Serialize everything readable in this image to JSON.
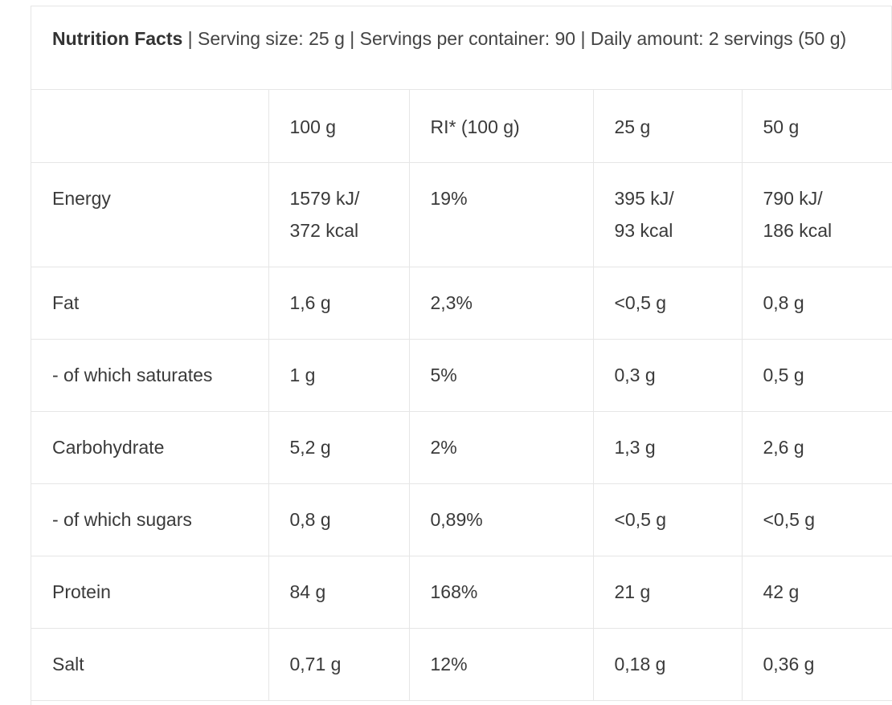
{
  "caption": {
    "title": "Nutrition Facts",
    "rest": " | Serving size: 25 g | Servings per container: 90 | Daily amount: 2 servings (50 g)"
  },
  "header": [
    "",
    "100 g",
    "RI* (100 g)",
    "25 g",
    "50 g"
  ],
  "rows": [
    {
      "label": "Energy",
      "c100": [
        "1579 kJ/",
        "372 kcal"
      ],
      "ri": "19%",
      "c25": [
        "395 kJ/",
        "93 kcal"
      ],
      "c50": [
        "790 kJ/",
        "186 kcal"
      ]
    },
    {
      "label": "Fat",
      "c100": [
        "1,6 g"
      ],
      "ri": "2,3%",
      "c25": [
        "<0,5 g"
      ],
      "c50": [
        "0,8 g"
      ]
    },
    {
      "label": "- of which saturates",
      "c100": [
        "1 g"
      ],
      "ri": "5%",
      "c25": [
        "0,3 g"
      ],
      "c50": [
        "0,5 g"
      ]
    },
    {
      "label": "Carbohydrate",
      "c100": [
        "5,2 g"
      ],
      "ri": "2%",
      "c25": [
        "1,3 g"
      ],
      "c50": [
        "2,6 g"
      ]
    },
    {
      "label": "- of which sugars",
      "c100": [
        "0,8 g"
      ],
      "ri": "0,89%",
      "c25": [
        "<0,5 g"
      ],
      "c50": [
        "<0,5 g"
      ]
    },
    {
      "label": "Protein",
      "c100": [
        "84 g"
      ],
      "ri": "168%",
      "c25": [
        "21 g"
      ],
      "c50": [
        "42 g"
      ]
    },
    {
      "label": "Salt",
      "c100": [
        "0,71 g"
      ],
      "ri": "12%",
      "c25": [
        "0,18 g"
      ],
      "c50": [
        "0,36 g"
      ]
    }
  ]
}
